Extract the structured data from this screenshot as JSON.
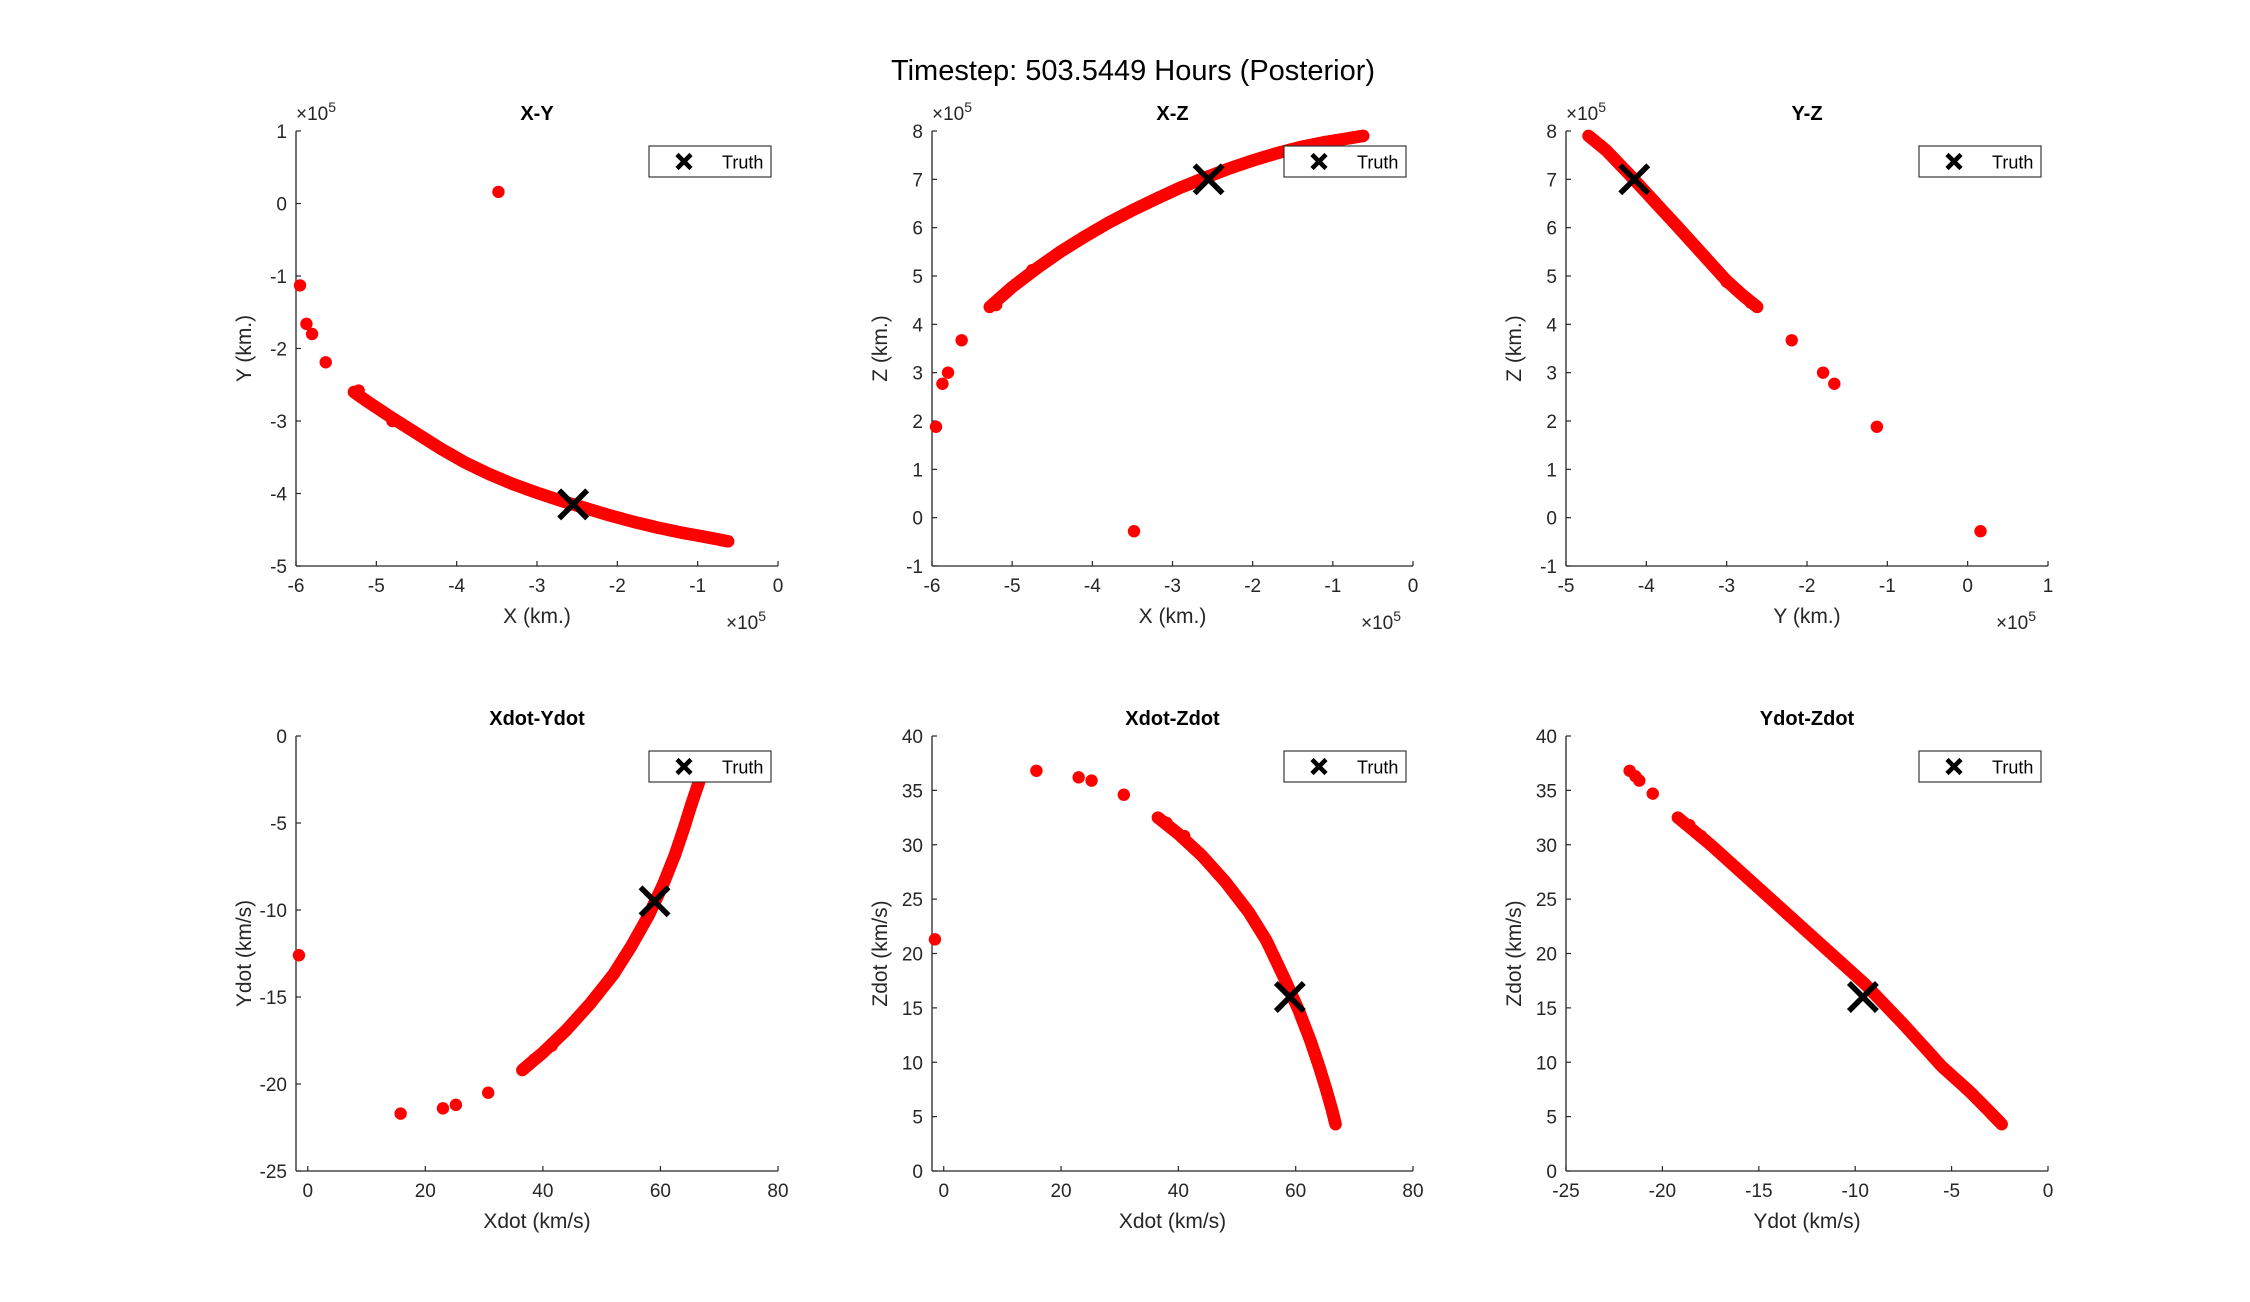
{
  "figure_title": "Timestep: 503.5449 Hours (Posterior)",
  "colors": {
    "particles": "#ff0000",
    "truth": "#000000",
    "axis": "#262626"
  },
  "chart_data": [
    {
      "type": "scatter",
      "title": "X-Y",
      "xlabel": "X (km.)",
      "ylabel": "Y (km.)",
      "xlim": [
        -6.0,
        0.0
      ],
      "ylim": [
        -5.0,
        1.0
      ],
      "xticks": [
        "-6",
        "-5",
        "-4",
        "-3",
        "-2",
        "-1",
        "0"
      ],
      "yticks": [
        "-5",
        "-4",
        "-3",
        "-2",
        "-1",
        "0",
        "1"
      ],
      "x_exponent": "×10^5",
      "y_exponent": "×10^5",
      "legend": {
        "label": "Truth",
        "location": "top-right"
      },
      "truth": {
        "x": -2.55,
        "y": -4.15
      },
      "outliers": {
        "x": [
          -5.95,
          -5.87,
          -5.8,
          -5.63,
          -3.48
        ],
        "y": [
          -1.13,
          -1.66,
          -1.8,
          -2.19,
          0.16
        ]
      },
      "curve": {
        "x": [
          -5.28,
          -5.1,
          -4.8,
          -4.5,
          -4.2,
          -3.9,
          -3.6,
          -3.3,
          -3.0,
          -2.7,
          -2.4,
          -2.1,
          -1.8,
          -1.5,
          -1.2,
          -0.9,
          -0.62
        ],
        "y": [
          -2.6,
          -2.74,
          -2.96,
          -3.17,
          -3.38,
          -3.57,
          -3.73,
          -3.87,
          -3.99,
          -4.1,
          -4.2,
          -4.3,
          -4.39,
          -4.47,
          -4.54,
          -4.6,
          -4.66
        ]
      },
      "sparse": {
        "x": [
          -5.22,
          -4.8
        ],
        "y": [
          -2.58,
          -3.0
        ]
      }
    },
    {
      "type": "scatter",
      "title": "X-Z",
      "xlabel": "X (km.)",
      "ylabel": "Z (km.)",
      "xlim": [
        -6.0,
        0.0
      ],
      "ylim": [
        -1.0,
        8.0
      ],
      "xticks": [
        "-6",
        "-5",
        "-4",
        "-3",
        "-2",
        "-1",
        "0"
      ],
      "yticks": [
        "-1",
        "0",
        "1",
        "2",
        "3",
        "4",
        "5",
        "6",
        "7",
        "8"
      ],
      "x_exponent": "×10^5",
      "y_exponent": "×10^5",
      "legend": {
        "label": "Truth",
        "location": "top-right"
      },
      "truth": {
        "x": -2.55,
        "y": 7.0
      },
      "outliers": {
        "x": [
          -5.95,
          -5.87,
          -5.8,
          -5.63,
          -3.48
        ],
        "y": [
          1.88,
          2.77,
          3.0,
          3.67,
          -0.28
        ]
      },
      "curve": {
        "x": [
          -5.28,
          -5.0,
          -4.7,
          -4.4,
          -4.1,
          -3.8,
          -3.5,
          -3.2,
          -2.9,
          -2.6,
          -2.3,
          -2.0,
          -1.7,
          -1.4,
          -1.1,
          -0.8,
          -0.62
        ],
        "y": [
          4.36,
          4.77,
          5.15,
          5.5,
          5.81,
          6.1,
          6.36,
          6.6,
          6.83,
          7.03,
          7.22,
          7.39,
          7.54,
          7.67,
          7.77,
          7.85,
          7.9
        ]
      },
      "sparse": {
        "x": [
          -4.75,
          -5.2
        ],
        "y": [
          5.12,
          4.4
        ]
      }
    },
    {
      "type": "scatter",
      "title": "Y-Z",
      "xlabel": "Y (km.)",
      "ylabel": "Z (km.)",
      "xlim": [
        -5.0,
        1.0
      ],
      "ylim": [
        -1.0,
        8.0
      ],
      "xticks": [
        "-5",
        "-4",
        "-3",
        "-2",
        "-1",
        "0",
        "1"
      ],
      "yticks": [
        "-1",
        "0",
        "1",
        "2",
        "3",
        "4",
        "5",
        "6",
        "7",
        "8"
      ],
      "x_exponent": "×10^5",
      "y_exponent": "×10^5",
      "legend": {
        "label": "Truth",
        "location": "top-right"
      },
      "truth": {
        "x": -4.15,
        "y": 7.0
      },
      "outliers": {
        "x": [
          -2.19,
          -1.8,
          -1.66,
          -1.13,
          0.16
        ],
        "y": [
          3.67,
          3.0,
          2.77,
          1.88,
          -0.28
        ]
      },
      "curve": {
        "x": [
          -4.72,
          -4.5,
          -4.2,
          -3.9,
          -3.6,
          -3.3,
          -3.0,
          -2.8,
          -2.62
        ],
        "y": [
          7.9,
          7.6,
          7.08,
          6.54,
          6.0,
          5.45,
          4.9,
          4.6,
          4.36
        ]
      },
      "sparse": {
        "x": [
          -3.0,
          -2.7
        ],
        "y": [
          4.88,
          4.45
        ]
      }
    },
    {
      "type": "scatter",
      "title": "Xdot-Ydot",
      "xlabel": "Xdot (km/s)",
      "ylabel": "Ydot (km/s)",
      "xlim": [
        -2.0,
        80.0
      ],
      "ylim": [
        -25.0,
        0.0
      ],
      "xticks": [
        "0",
        "20",
        "40",
        "60",
        "80"
      ],
      "yticks": [
        "-25",
        "-20",
        "-15",
        "-10",
        "-5",
        "0"
      ],
      "legend": {
        "label": "Truth",
        "location": "top-right"
      },
      "truth": {
        "x": 59.0,
        "y": -9.5
      },
      "outliers": {
        "x": [
          -1.5,
          15.8,
          23.0,
          25.2,
          30.7
        ],
        "y": [
          -12.6,
          -21.7,
          -21.4,
          -21.2,
          -20.5
        ]
      },
      "curve": {
        "x": [
          36.5,
          40.0,
          44.0,
          48.0,
          52.0,
          55.0,
          58.0,
          60.5,
          62.5,
          64.0,
          65.2,
          66.2,
          66.8
        ],
        "y": [
          -19.2,
          -18.2,
          -16.9,
          -15.4,
          -13.7,
          -12.1,
          -10.3,
          -8.5,
          -6.8,
          -5.3,
          -4.0,
          -3.0,
          -2.4
        ]
      },
      "sparse": {
        "x": [
          38.5,
          41.5
        ],
        "y": [
          -18.6,
          -17.8
        ]
      }
    },
    {
      "type": "scatter",
      "title": "Xdot-Zdot",
      "xlabel": "Xdot (km/s)",
      "ylabel": "Zdot (km/s)",
      "xlim": [
        -2.0,
        80.0
      ],
      "ylim": [
        0.0,
        40.0
      ],
      "xticks": [
        "0",
        "20",
        "40",
        "60",
        "80"
      ],
      "yticks": [
        "0",
        "5",
        "10",
        "15",
        "20",
        "25",
        "30",
        "35",
        "40"
      ],
      "legend": {
        "label": "Truth",
        "location": "top-right"
      },
      "truth": {
        "x": 59.0,
        "y": 16.0
      },
      "outliers": {
        "x": [
          -1.5,
          15.8,
          23.0,
          25.2,
          30.7
        ],
        "y": [
          21.3,
          36.8,
          36.2,
          35.9,
          34.6
        ]
      },
      "curve": {
        "x": [
          36.5,
          40.0,
          44.0,
          48.0,
          52.0,
          55.0,
          58.0,
          60.5,
          62.5,
          64.0,
          65.2,
          66.2,
          66.8
        ],
        "y": [
          32.5,
          31.0,
          29.0,
          26.6,
          23.8,
          21.2,
          17.8,
          14.8,
          12.0,
          9.6,
          7.5,
          5.6,
          4.3
        ]
      },
      "sparse": {
        "x": [
          38.0,
          41.0
        ],
        "y": [
          32.0,
          30.8
        ]
      }
    },
    {
      "type": "scatter",
      "title": "Ydot-Zdot",
      "xlabel": "Ydot (km/s)",
      "ylabel": "Zdot (km/s)",
      "xlim": [
        -25.0,
        0.0
      ],
      "ylim": [
        0.0,
        40.0
      ],
      "xticks": [
        "-25",
        "-20",
        "-15",
        "-10",
        "-5",
        "0"
      ],
      "yticks": [
        "0",
        "5",
        "10",
        "15",
        "20",
        "25",
        "30",
        "35",
        "40"
      ],
      "legend": {
        "label": "Truth",
        "location": "top-right"
      },
      "truth": {
        "x": -9.6,
        "y": 16.0
      },
      "outliers": {
        "x": [
          -21.7,
          -21.4,
          -21.2,
          -20.5
        ],
        "y": [
          36.8,
          36.3,
          35.9,
          34.7
        ]
      },
      "curve": {
        "x": [
          -19.2,
          -17.5,
          -15.5,
          -13.5,
          -11.5,
          -9.5,
          -7.5,
          -5.5,
          -4.0,
          -3.0,
          -2.4
        ],
        "y": [
          32.5,
          30.0,
          26.8,
          23.6,
          20.4,
          17.2,
          13.5,
          9.6,
          7.2,
          5.4,
          4.3
        ]
      },
      "sparse": {
        "x": [
          -18.6,
          -18.0
        ],
        "y": [
          31.8,
          30.8
        ]
      }
    }
  ]
}
